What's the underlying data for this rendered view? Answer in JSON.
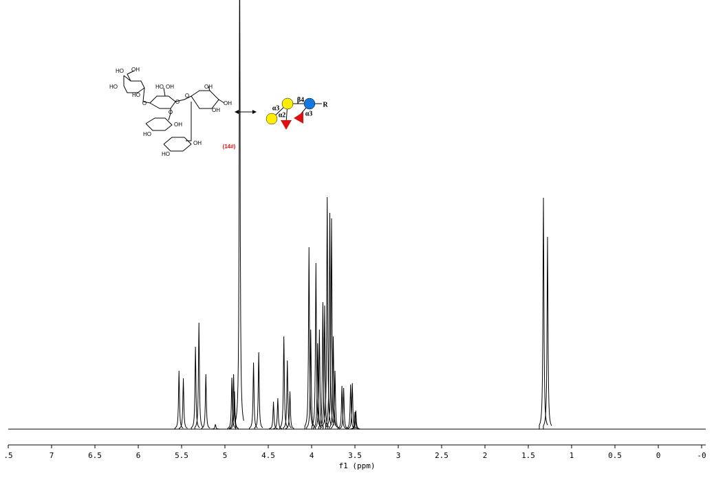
{
  "chart_data": {
    "type": "nmr",
    "x_label": "f1 (ppm)",
    "xlim": [
      7.5,
      -0.5
    ],
    "xticks": [
      {
        "value": 7.5,
        "label": ".5"
      },
      7.0,
      6.5,
      6.0,
      5.5,
      5.0,
      4.5,
      4.0,
      3.5,
      3.0,
      2.5,
      2.0,
      1.5,
      1.0,
      0.5,
      0.0,
      {
        "value": -0.5,
        "label": "-0"
      }
    ],
    "ylim": [
      0,
      625
    ],
    "color": "#000000",
    "x": [
      5.53,
      5.48,
      5.34,
      5.3,
      5.22,
      5.11,
      4.92,
      4.9,
      4.89,
      4.83,
      4.67,
      4.61,
      4.44,
      4.39,
      4.32,
      4.28,
      4.25,
      4.03,
      4.01,
      3.95,
      3.93,
      3.91,
      3.87,
      3.85,
      3.82,
      3.79,
      3.77,
      3.75,
      3.73,
      3.65,
      3.63,
      3.55,
      3.53,
      3.5,
      3.49,
      1.325,
      1.278
    ],
    "values": [
      85,
      74,
      120,
      155,
      80,
      7,
      75,
      80,
      55,
      700,
      97,
      112,
      40,
      45,
      135,
      100,
      55,
      265,
      145,
      242,
      125,
      145,
      185,
      180,
      338,
      315,
      307,
      135,
      85,
      63,
      60,
      65,
      67,
      25,
      27,
      337,
      280
    ],
    "annotations": {
      "compound": "(14#)",
      "structure_labels": [
        "HO",
        "OH",
        "HO",
        "HO",
        "O",
        "HO",
        "OH",
        "O",
        "O",
        "OH",
        "OH",
        "OH",
        "O",
        "OH",
        "HO",
        "OH",
        "HO"
      ],
      "glycan_labels": [
        "β4",
        "α3",
        "α2",
        "α3",
        "R"
      ]
    }
  }
}
